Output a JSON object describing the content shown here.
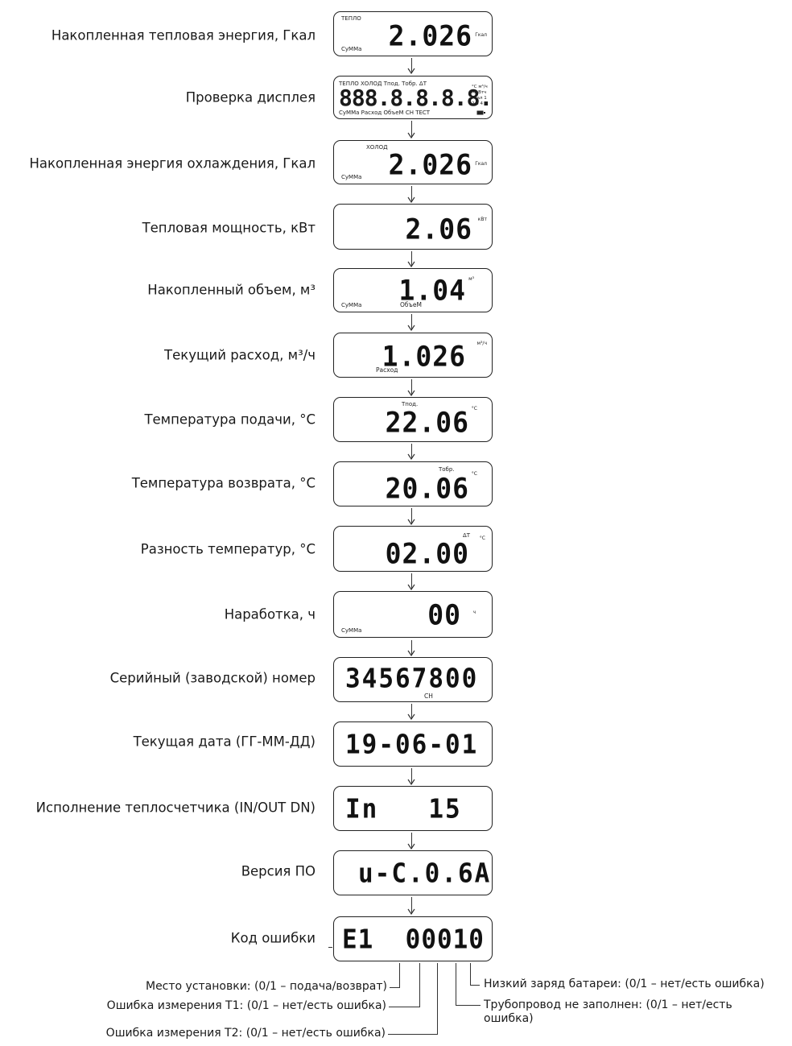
{
  "rows": [
    {
      "label": "Накопленная тепловая энергия, Гкал",
      "digits": "2.026",
      "unit": "Гкал",
      "top_text": "ТЕПЛО",
      "bottom_text": "СуММа"
    },
    {
      "label": "Проверка дисплея",
      "digits": "888.8.8.8.8.8",
      "top_text": "ТЕПЛО   ХОЛОД   Тпод.  Тобр.  ΔТ",
      "bottom_text": "СуММа  Расход   ОбъеМ   СН   ТЕСТ",
      "side_units": "°С м³/ч МкВтч Гкал 1 2 3 4"
    },
    {
      "label": "Накопленная энергия охлаждения, Гкал",
      "digits": "2.026",
      "unit": "Гкал",
      "top_text": "ХОЛОД",
      "bottom_text": "СуММа"
    },
    {
      "label": "Тепловая мощность, кВт",
      "digits": "2.06",
      "unit": "кВт"
    },
    {
      "label": "Накопленный объем, м³",
      "digits": "1.04",
      "unit": "м³",
      "bottom_text": "СуММа",
      "mid_text": "ОбъеМ"
    },
    {
      "label": "Текущий расход, м³/ч",
      "digits": "1.026",
      "unit": "м³/ч",
      "mid_text": "Расход"
    },
    {
      "label": "Температура подачи, °С",
      "digits": "22.06",
      "unit": "°С",
      "top_text": "Тпод."
    },
    {
      "label": "Температура возврата, °С",
      "digits": "20.06",
      "unit": "°С",
      "top_text": "Тобр."
    },
    {
      "label": "Разность температур, °С",
      "digits": "02.00",
      "unit": "°С",
      "top_text": "ΔТ"
    },
    {
      "label": "Наработка, ч",
      "digits": "00",
      "unit": "ч",
      "bottom_text": "СуММа"
    },
    {
      "label": "Серийный (заводской) номер",
      "digits": "34567800",
      "mid_text": "СН"
    },
    {
      "label": "Текущая дата (ГГ-ММ-ДД)",
      "digits": "19-06-01"
    },
    {
      "label": "Исполнение теплосчетчика (IN/OUT    DN)",
      "digits": "In   15"
    },
    {
      "label": "Версия ПО",
      "digits": "u-C.0.6A"
    },
    {
      "label": "Код ошибки",
      "digits": "E1  00010"
    }
  ],
  "callouts": {
    "place": "Место установки: (0/1 – подача/возврат)",
    "t1": "Ошибка измерения T1: (0/1 – нет/есть ошибка)",
    "t2": "Ошибка измерения T2: (0/1 – нет/есть ошибка)",
    "battery": "Низкий заряд батареи: (0/1 – нет/есть ошибка)",
    "pipe": "Трубопровод не заполнен: (0/1 – нет/есть ошибка)"
  }
}
